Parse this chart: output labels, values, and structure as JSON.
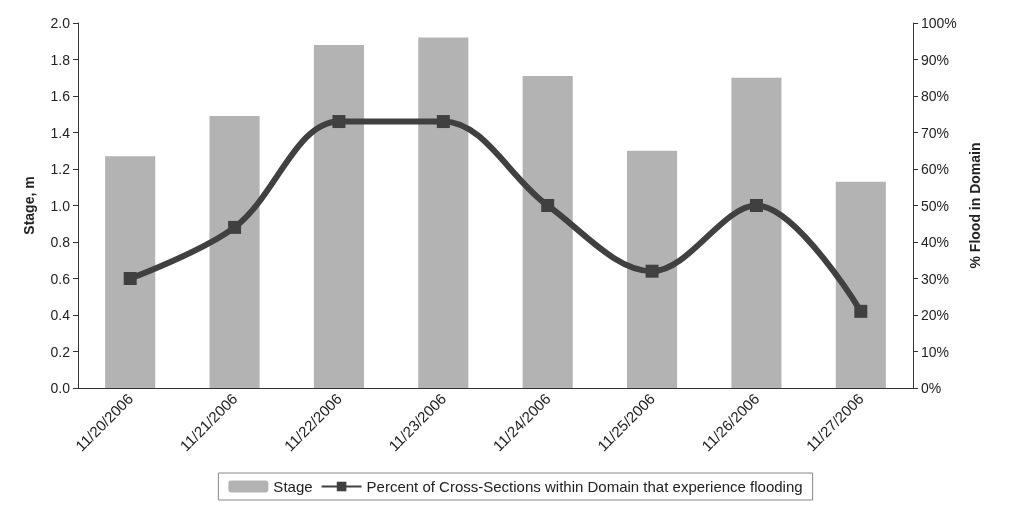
{
  "chart_data": {
    "type": "bar",
    "ylabel": "Stage, m",
    "y2label": "% Flood in Domain",
    "categories": [
      "11/20/2006",
      "11/21/2006",
      "11/22/2006",
      "11/23/2006",
      "11/24/2006",
      "11/25/2006",
      "11/26/2006",
      "11/27/2006"
    ],
    "series": [
      {
        "name": "Stage",
        "color": "#b3b3b3",
        "values": [
          1.27,
          1.49,
          1.88,
          1.92,
          1.71,
          1.3,
          1.7,
          1.13
        ]
      },
      {
        "name": "Percent of Cross-Sections within Domain that experience flooding",
        "type": "line",
        "axis": "y2",
        "color": "#404040",
        "marker": "square",
        "values": [
          30,
          44,
          73,
          73,
          50,
          32,
          50,
          21
        ]
      }
    ],
    "ylim": [
      0,
      2
    ],
    "yticks": [
      {
        "value": 0,
        "label": "0.0"
      },
      {
        "value": 0.2,
        "label": "0.2"
      },
      {
        "value": 0.4,
        "label": "0.4"
      },
      {
        "value": 0.6,
        "label": "0.6"
      },
      {
        "value": 0.8,
        "label": "0.8"
      },
      {
        "value": 1,
        "label": "1.0"
      },
      {
        "value": 1.2,
        "label": "1.2"
      },
      {
        "value": 1.4,
        "label": "1.4"
      },
      {
        "value": 1.6,
        "label": "1.6"
      },
      {
        "value": 1.8,
        "label": "1.8"
      },
      {
        "value": 2,
        "label": "2.0"
      }
    ],
    "y2lim": [
      0,
      100
    ],
    "y2ticks": [
      {
        "value": 0,
        "label": "0%"
      },
      {
        "value": 10,
        "label": "10%"
      },
      {
        "value": 20,
        "label": "20%"
      },
      {
        "value": 30,
        "label": "30%"
      },
      {
        "value": 40,
        "label": "40%"
      },
      {
        "value": 50,
        "label": "50%"
      },
      {
        "value": 60,
        "label": "60%"
      },
      {
        "value": 70,
        "label": "70%"
      },
      {
        "value": 80,
        "label": "80%"
      },
      {
        "value": 90,
        "label": "90%"
      },
      {
        "value": 100,
        "label": "100%"
      }
    ],
    "legend": "bottom",
    "grid": false
  }
}
